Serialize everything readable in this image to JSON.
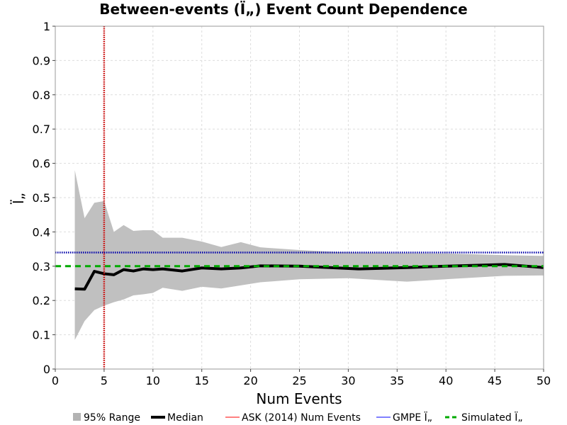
{
  "chart_data": {
    "type": "line",
    "title": "Between-events (Ï„) Event Count Dependence",
    "xlabel": "Num Events",
    "ylabel": "Ï„",
    "xlim": [
      0,
      50
    ],
    "ylim": [
      0,
      1
    ],
    "xticks": [
      "0",
      "5",
      "10",
      "15",
      "20",
      "25",
      "30",
      "35",
      "40",
      "45",
      "50"
    ],
    "yticks": [
      "0",
      "0.1",
      "0.2",
      "0.3",
      "0.4",
      "0.5",
      "0.6",
      "0.7",
      "0.8",
      "0.9",
      "1"
    ],
    "grid": true,
    "legend_position": "bottom",
    "legend": [
      {
        "label": "95% Range",
        "color": "#b3b3b3",
        "style": "box"
      },
      {
        "label": "Median",
        "color": "#000000",
        "style": "solid"
      },
      {
        "label": "ASK (2014) Num Events",
        "color": "#ff8080",
        "style": "solid"
      },
      {
        "label": "GMPE Ï„",
        "color": "#8080ff",
        "style": "solid"
      },
      {
        "label": "Simulated Ï„",
        "color": "#00aa00",
        "style": "dashed"
      }
    ],
    "range_band": {
      "name": "95% Range",
      "color": "#c0c0c0",
      "x": [
        2,
        3,
        4,
        5,
        6,
        7,
        8,
        9,
        10,
        11,
        13,
        15,
        17,
        19,
        21,
        25,
        30,
        36,
        40,
        46,
        50
      ],
      "upper": [
        0.58,
        0.44,
        0.485,
        0.49,
        0.4,
        0.42,
        0.403,
        0.405,
        0.405,
        0.383,
        0.383,
        0.372,
        0.356,
        0.37,
        0.355,
        0.347,
        0.34,
        0.338,
        0.337,
        0.332,
        0.33
      ],
      "lower": [
        0.085,
        0.14,
        0.172,
        0.185,
        0.195,
        0.203,
        0.215,
        0.218,
        0.222,
        0.237,
        0.228,
        0.24,
        0.235,
        0.244,
        0.253,
        0.262,
        0.265,
        0.255,
        0.262,
        0.272,
        0.273
      ]
    },
    "series": [
      {
        "name": "Median",
        "color": "#000000",
        "x": [
          2,
          3,
          4,
          5,
          6,
          7,
          8,
          9,
          10,
          11,
          13,
          15,
          17,
          19,
          21,
          25,
          31,
          36,
          40,
          46,
          50
        ],
        "values": [
          0.234,
          0.233,
          0.285,
          0.278,
          0.275,
          0.29,
          0.286,
          0.292,
          0.29,
          0.292,
          0.286,
          0.295,
          0.292,
          0.295,
          0.301,
          0.3,
          0.292,
          0.296,
          0.3,
          0.305,
          0.296
        ]
      }
    ],
    "reference_lines": [
      {
        "name": "ASK (2014) Num Events",
        "orientation": "vertical",
        "value": 5,
        "color": "#cc0000",
        "style": "dotted"
      },
      {
        "name": "GMPE Ï„",
        "orientation": "horizontal",
        "value": 0.34,
        "color": "#0000aa",
        "style": "dotted"
      },
      {
        "name": "Simulated Ï„",
        "orientation": "horizontal",
        "value": 0.3,
        "color": "#00aa00",
        "style": "dashed"
      }
    ]
  }
}
